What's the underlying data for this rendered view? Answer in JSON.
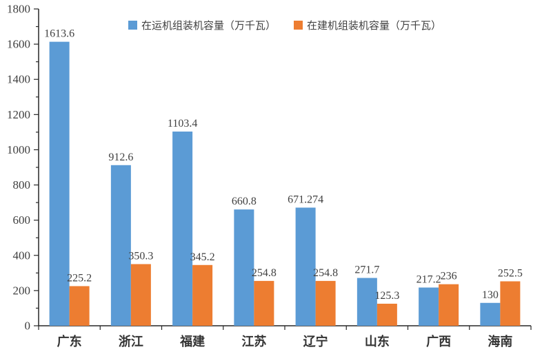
{
  "chart_data": {
    "type": "bar",
    "title": "",
    "xlabel": "",
    "ylabel": "",
    "categories": [
      "广东",
      "浙江",
      "福建",
      "江苏",
      "辽宁",
      "山东",
      "广西",
      "海南"
    ],
    "series": [
      {
        "name": "在运机组装机容量（万千瓦）",
        "color": "#5B9BD5",
        "values": [
          1613.6,
          912.6,
          1103.4,
          660.8,
          671.274,
          271.7,
          217.2,
          130
        ]
      },
      {
        "name": "在建机组装机容量（万千瓦）",
        "color": "#ED7D31",
        "values": [
          225.2,
          350.3,
          345.2,
          254.8,
          254.8,
          125.3,
          236,
          252.5
        ]
      }
    ],
    "ylim": [
      0,
      1800
    ],
    "ytick_interval": 200,
    "minor_tick_interval": 100,
    "grid": false,
    "legend_position": "top",
    "data_labels": true,
    "axis_color": "#262626",
    "label_color": "#404040",
    "tick_label_color": "#404040",
    "category_label_color": "#333333"
  }
}
